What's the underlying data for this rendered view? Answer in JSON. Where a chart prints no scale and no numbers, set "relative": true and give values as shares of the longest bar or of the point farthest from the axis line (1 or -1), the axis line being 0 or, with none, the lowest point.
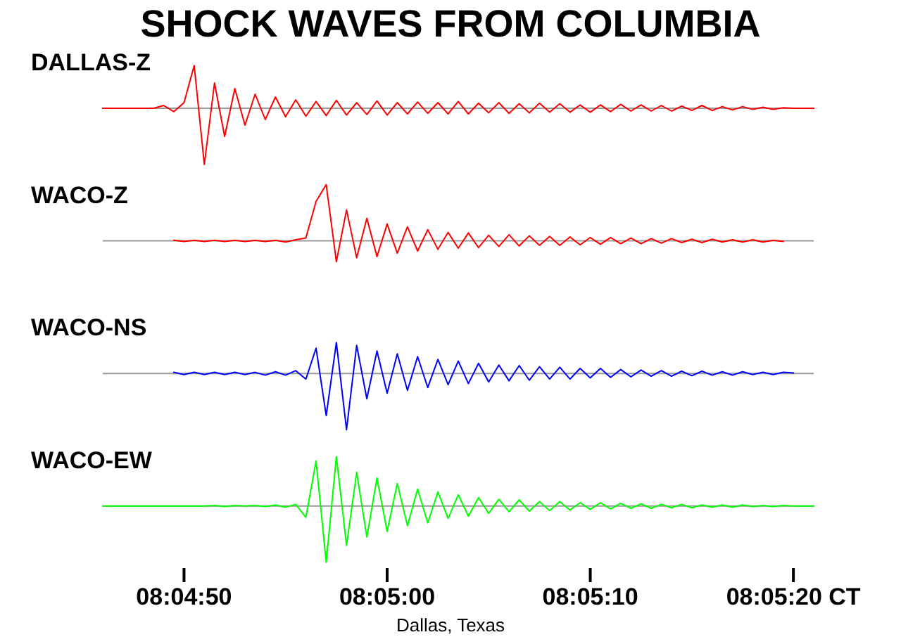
{
  "chart_data": [
    {
      "type": "line",
      "title": "SHOCK WAVES FROM COLUMBIA",
      "subtitle": "DALLAS-Z",
      "relative": true,
      "tick_labels": false,
      "xlim": [
        8.0794444,
        8.0891667
      ],
      "x": [
        8.0794444,
        8.0795833,
        8.0797222,
        8.0798611,
        8.08,
        8.0801389,
        8.0802778,
        8.0804167,
        8.0805556,
        8.0806944,
        8.0808333,
        8.0809722,
        8.0811111,
        8.08125,
        8.0813889,
        8.0815278,
        8.0816667,
        8.0818056,
        8.0819444,
        8.0820833,
        8.0822222,
        8.0823611,
        8.0825,
        8.0826389,
        8.0827778,
        8.0829167,
        8.0830556,
        8.0831944,
        8.0833333,
        8.0834722,
        8.0836111,
        8.08375,
        8.0838889,
        8.0840278,
        8.0841667,
        8.0843056,
        8.0844444,
        8.0845833,
        8.0847222,
        8.0848611,
        8.085,
        8.0851389,
        8.0852778,
        8.0854167,
        8.0855556,
        8.0856944,
        8.0858333,
        8.0859722,
        8.0861111,
        8.08625,
        8.0863889,
        8.0865278,
        8.0866667,
        8.0868056,
        8.0869444,
        8.0870833,
        8.0872222,
        8.0873611,
        8.0875,
        8.0876389,
        8.0877778,
        8.0879167,
        8.0880556,
        8.0881944,
        8.0883333,
        8.0884722,
        8.0886111,
        8.08875,
        8.0888889,
        8.0890278,
        8.0891667
      ],
      "series": [
        {
          "color": "#ff0000",
          "values": [
            0,
            0,
            0,
            0,
            0,
            0,
            0.05,
            -0.06,
            0.1,
            0.76,
            -1,
            0.45,
            -0.5,
            0.35,
            -0.3,
            0.25,
            -0.2,
            0.2,
            -0.15,
            0.15,
            -0.14,
            0.12,
            -0.13,
            0.14,
            -0.12,
            0.1,
            -0.11,
            0.13,
            -0.12,
            0.1,
            -0.1,
            0.11,
            -0.09,
            0.1,
            -0.1,
            0.12,
            -0.1,
            0.09,
            -0.08,
            0.1,
            -0.09,
            0.08,
            -0.08,
            0.09,
            -0.07,
            0.08,
            -0.07,
            0.06,
            -0.07,
            0.06,
            -0.06,
            0.07,
            -0.05,
            0.06,
            -0.05,
            0.05,
            -0.05,
            0.04,
            -0.04,
            0.05,
            -0.04,
            0.03,
            -0.03,
            0.03,
            -0.02,
            0.02,
            -0.02,
            0.01,
            0,
            0,
            0
          ]
        }
      ]
    },
    {
      "type": "line",
      "subtitle": "WACO-Z",
      "relative": true,
      "tick_labels": false,
      "xlim": [
        8.0794444,
        8.0891667
      ],
      "x": [
        8.0804167,
        8.0805556,
        8.0806944,
        8.0808333,
        8.0809722,
        8.0811111,
        8.08125,
        8.0813889,
        8.0815278,
        8.0816667,
        8.0818056,
        8.0819444,
        8.0820833,
        8.0822222,
        8.0823611,
        8.0825,
        8.0826389,
        8.0827778,
        8.0829167,
        8.0830556,
        8.0831944,
        8.0833333,
        8.0834722,
        8.0836111,
        8.08375,
        8.0838889,
        8.0840278,
        8.0841667,
        8.0843056,
        8.0844444,
        8.0845833,
        8.0847222,
        8.0848611,
        8.085,
        8.0851389,
        8.0852778,
        8.0854167,
        8.0855556,
        8.0856944,
        8.0858333,
        8.0859722,
        8.0861111,
        8.08625,
        8.0863889,
        8.0865278,
        8.0866667,
        8.0868056,
        8.0869444,
        8.0870833,
        8.0872222,
        8.0873611,
        8.0875,
        8.0876389,
        8.0877778,
        8.0879167,
        8.0880556,
        8.0881944,
        8.0883333,
        8.0884722,
        8.0886111,
        8.08875
      ],
      "series": [
        {
          "color": "#ff0000",
          "values": [
            0.01,
            -0.01,
            0.01,
            -0.01,
            0.01,
            -0.01,
            0.01,
            -0.01,
            0.01,
            -0.01,
            0.01,
            -0.02,
            0.02,
            0.05,
            0.7,
            1,
            -0.37,
            0.55,
            -0.3,
            0.4,
            -0.28,
            0.3,
            -0.22,
            0.25,
            -0.18,
            0.2,
            -0.15,
            0.15,
            -0.13,
            0.14,
            -0.12,
            0.1,
            -0.1,
            0.11,
            -0.09,
            0.09,
            -0.08,
            0.08,
            -0.08,
            0.07,
            -0.07,
            0.06,
            -0.06,
            0.06,
            -0.05,
            0.05,
            -0.05,
            0.04,
            -0.04,
            0.04,
            -0.03,
            0.03,
            -0.03,
            0.03,
            -0.02,
            0.02,
            -0.02,
            0.02,
            -0.02,
            0.01,
            -0.01
          ]
        }
      ]
    },
    {
      "type": "line",
      "subtitle": "WACO-NS",
      "relative": true,
      "tick_labels": false,
      "xlim": [
        8.0794444,
        8.0891667
      ],
      "x": [
        8.0804167,
        8.0805556,
        8.0806944,
        8.0808333,
        8.0809722,
        8.0811111,
        8.08125,
        8.0813889,
        8.0815278,
        8.0816667,
        8.0818056,
        8.0819444,
        8.0820833,
        8.0822222,
        8.0823611,
        8.0825,
        8.0826389,
        8.0827778,
        8.0829167,
        8.0830556,
        8.0831944,
        8.0833333,
        8.0834722,
        8.0836111,
        8.08375,
        8.0838889,
        8.0840278,
        8.0841667,
        8.0843056,
        8.0844444,
        8.0845833,
        8.0847222,
        8.0848611,
        8.085,
        8.0851389,
        8.0852778,
        8.0854167,
        8.0855556,
        8.0856944,
        8.0858333,
        8.0859722,
        8.0861111,
        8.08625,
        8.0863889,
        8.0865278,
        8.0866667,
        8.0868056,
        8.0869444,
        8.0870833,
        8.0872222,
        8.0873611,
        8.0875,
        8.0876389,
        8.0877778,
        8.0879167,
        8.0880556,
        8.0881944,
        8.0883333,
        8.0884722,
        8.0886111,
        8.08875,
        8.0888889
      ],
      "series": [
        {
          "color": "#0000ff",
          "values": [
            0.02,
            -0.02,
            0.02,
            -0.02,
            0.02,
            -0.02,
            0.02,
            -0.02,
            0.02,
            -0.03,
            0.03,
            -0.03,
            0.05,
            -0.1,
            0.45,
            -0.75,
            0.55,
            -1,
            0.5,
            -0.45,
            0.4,
            -0.35,
            0.35,
            -0.3,
            0.3,
            -0.25,
            0.25,
            -0.2,
            0.22,
            -0.18,
            0.18,
            -0.15,
            0.15,
            -0.13,
            0.14,
            -0.12,
            0.12,
            -0.1,
            0.11,
            -0.1,
            0.09,
            -0.08,
            0.09,
            -0.07,
            0.07,
            -0.06,
            0.06,
            -0.05,
            0.05,
            -0.05,
            0.04,
            -0.04,
            0.04,
            -0.03,
            0.03,
            -0.03,
            0.03,
            -0.02,
            0.02,
            -0.02,
            0.02,
            0.01
          ]
        }
      ]
    },
    {
      "type": "line",
      "subtitle": "WACO-EW",
      "relative": true,
      "tick_labels": "x",
      "xlim": [
        8.0794444,
        8.0891667
      ],
      "xticks": [
        {
          "value": 8.0805556,
          "label": "08:04:50"
        },
        {
          "value": 8.0833333,
          "label": "08:05:00"
        },
        {
          "value": 8.0861111,
          "label": "08:05:10"
        },
        {
          "value": 8.0888889,
          "label": "08:05:20 CT"
        }
      ],
      "annotations": [
        "Dallas, Texas"
      ],
      "x": [
        8.0794444,
        8.0795833,
        8.0797222,
        8.0798611,
        8.08,
        8.0801389,
        8.0802778,
        8.0804167,
        8.0805556,
        8.0806944,
        8.0808333,
        8.0809722,
        8.0811111,
        8.08125,
        8.0813889,
        8.0815278,
        8.0816667,
        8.0818056,
        8.0819444,
        8.0820833,
        8.0822222,
        8.0823611,
        8.0825,
        8.0826389,
        8.0827778,
        8.0829167,
        8.0830556,
        8.0831944,
        8.0833333,
        8.0834722,
        8.0836111,
        8.08375,
        8.0838889,
        8.0840278,
        8.0841667,
        8.0843056,
        8.0844444,
        8.0845833,
        8.0847222,
        8.0848611,
        8.085,
        8.0851389,
        8.0852778,
        8.0854167,
        8.0855556,
        8.0856944,
        8.0858333,
        8.0859722,
        8.0861111,
        8.08625,
        8.0863889,
        8.0865278,
        8.0866667,
        8.0868056,
        8.0869444,
        8.0870833,
        8.0872222,
        8.0873611,
        8.0875,
        8.0876389,
        8.0877778,
        8.0879167,
        8.0880556,
        8.0881944,
        8.0883333,
        8.0884722,
        8.0886111,
        8.08875,
        8.0888889,
        8.0890278,
        8.0891667
      ],
      "series": [
        {
          "color": "#00ff00",
          "values": [
            0,
            0,
            0,
            0,
            0,
            0,
            0,
            0,
            0,
            0,
            0,
            0.01,
            -0.01,
            0.01,
            0,
            0.01,
            -0.01,
            0.02,
            -0.02,
            0.03,
            -0.2,
            0.8,
            -1,
            0.88,
            -0.7,
            0.6,
            -0.55,
            0.5,
            -0.45,
            0.4,
            -0.35,
            0.3,
            -0.3,
            0.25,
            -0.22,
            0.2,
            -0.18,
            0.15,
            -0.13,
            0.12,
            -0.1,
            0.11,
            -0.09,
            0.08,
            -0.08,
            0.08,
            -0.07,
            0.06,
            -0.06,
            0.06,
            -0.05,
            0.05,
            -0.04,
            0.04,
            -0.04,
            0.03,
            -0.03,
            0.03,
            -0.03,
            0.02,
            -0.02,
            0.02,
            -0.02,
            0.02,
            -0.01,
            0.01,
            -0.01,
            0.01,
            0,
            0,
            0
          ]
        }
      ]
    }
  ]
}
